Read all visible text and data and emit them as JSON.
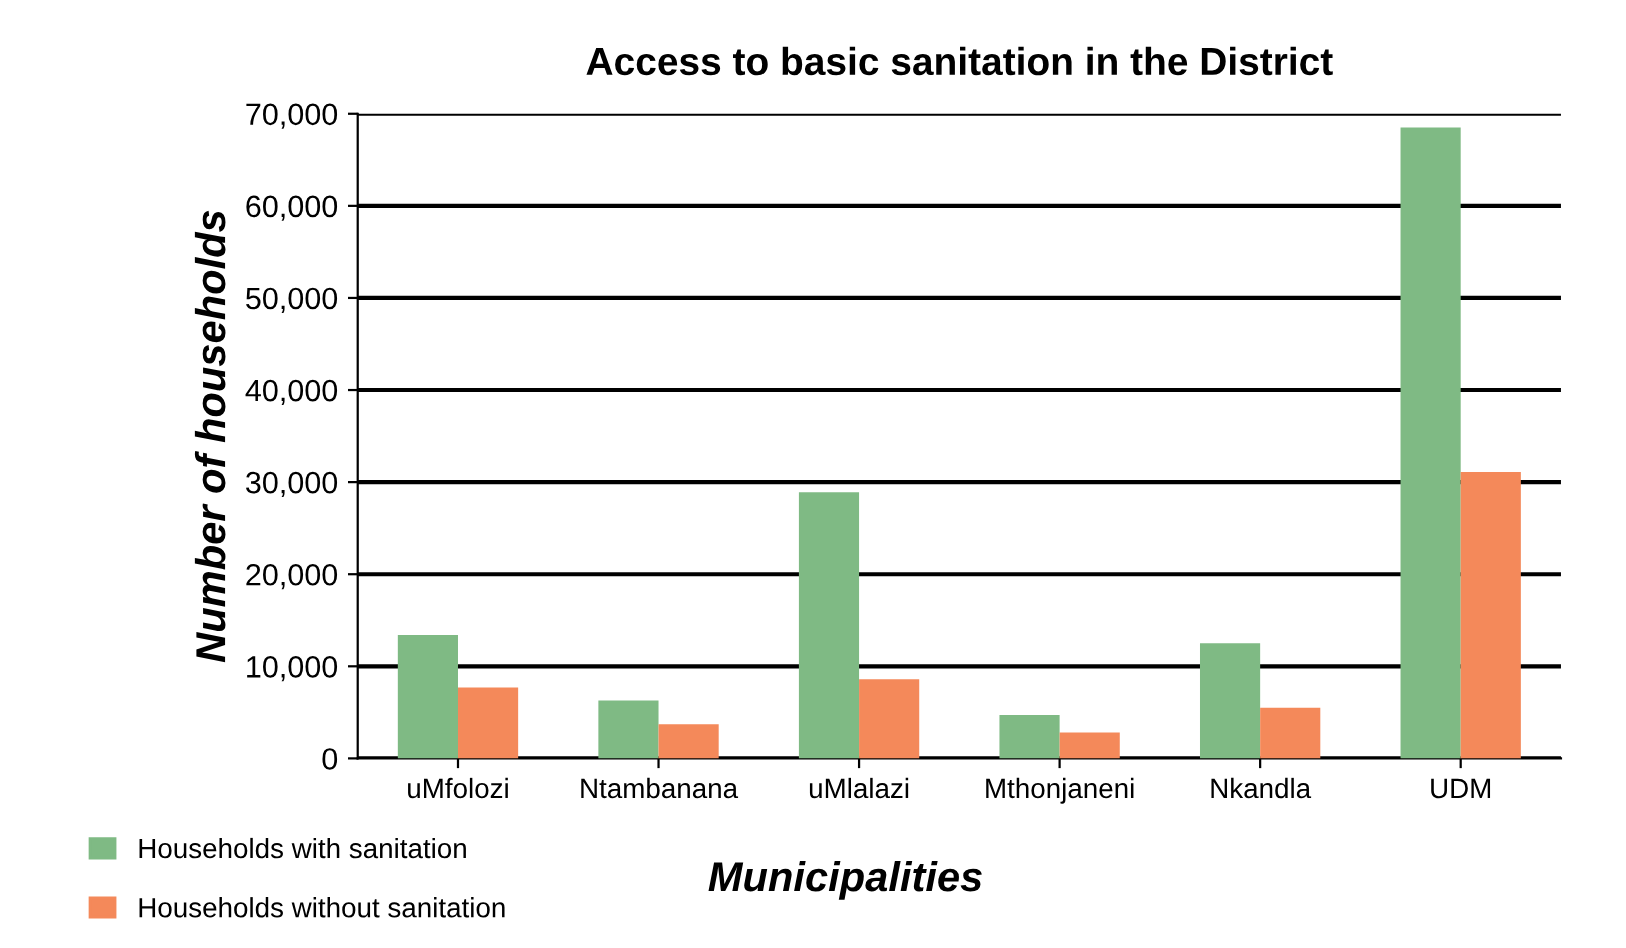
{
  "chart_data": {
    "type": "bar",
    "title": "Access to basic sanitation in the District",
    "xlabel": "Municipalities",
    "ylabel": "Number of households",
    "categories": [
      "uMfolozi",
      "Ntambanana",
      "uMlalazi",
      "Mthonjaneni",
      "Nkandla",
      "UDM"
    ],
    "series": [
      {
        "name": "Households with sanitation",
        "color": "#7fba84",
        "values": [
          13400,
          6300,
          28900,
          4700,
          12500,
          68500
        ]
      },
      {
        "name": "Households without sanitation",
        "color": "#f4895a",
        "values": [
          7700,
          3700,
          8600,
          2800,
          5500,
          31100
        ]
      }
    ],
    "ylim": [
      0,
      70000
    ],
    "yticks": [
      {
        "value": 0,
        "label": "0"
      },
      {
        "value": 10000,
        "label": "10,000"
      },
      {
        "value": 20000,
        "label": "20,000"
      },
      {
        "value": 30000,
        "label": "30,000"
      },
      {
        "value": 40000,
        "label": "40,000"
      },
      {
        "value": 50000,
        "label": "50,000"
      },
      {
        "value": 60000,
        "label": "60,000"
      },
      {
        "value": 70000,
        "label": "70,000"
      }
    ],
    "grid": "y",
    "legend": "bottom left"
  }
}
